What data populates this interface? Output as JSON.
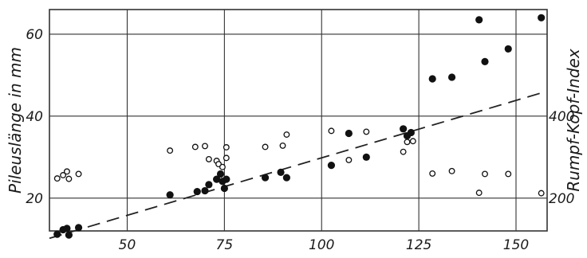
{
  "chart_data": {
    "type": "scatter",
    "title": "",
    "xlabel": "",
    "ylabel": "Pileuslänge in mm",
    "y2label": "Rumpf-Kopf-Index",
    "xlim": [
      30,
      158
    ],
    "ylim": [
      12,
      66
    ],
    "y2lim": [
      120,
      660
    ],
    "grid": true,
    "xticks": [
      50,
      75,
      100,
      125,
      150
    ],
    "yticks": [
      20,
      40,
      60
    ],
    "y2ticks": [
      200,
      400
    ],
    "colors": {
      "filled": "#111111",
      "open": "#111111",
      "grid": "#333333",
      "trend": "#222222"
    },
    "series": [
      {
        "marker": "filled-circle",
        "axis": "left",
        "points": [
          [
            32,
            11.2
          ],
          [
            33.5,
            12.3
          ],
          [
            34.5,
            12.6
          ],
          [
            35,
            11.0
          ],
          [
            37.5,
            12.8
          ],
          [
            61,
            20.8
          ],
          [
            68,
            21.6
          ],
          [
            70,
            21.8
          ],
          [
            71,
            23.3
          ],
          [
            73,
            24.6
          ],
          [
            74,
            25.9
          ],
          [
            74.5,
            24.1
          ],
          [
            75,
            22.4
          ],
          [
            75.5,
            24.6
          ],
          [
            85.5,
            25.0
          ],
          [
            89.5,
            26.3
          ],
          [
            91,
            25.0
          ],
          [
            102.5,
            28.0
          ],
          [
            107,
            35.8
          ],
          [
            111.5,
            30.0
          ],
          [
            121,
            36.9
          ],
          [
            122,
            35.2
          ],
          [
            123,
            36.0
          ],
          [
            128.5,
            49.1
          ],
          [
            133.5,
            49.5
          ],
          [
            140.5,
            63.5
          ],
          [
            142,
            53.3
          ],
          [
            148,
            56.4
          ],
          [
            156.5,
            64.0
          ]
        ]
      },
      {
        "marker": "open-circle",
        "axis": "right",
        "points": [
          [
            32,
            248
          ],
          [
            33.5,
            256
          ],
          [
            34.5,
            265
          ],
          [
            35,
            247
          ],
          [
            37.5,
            259
          ],
          [
            61,
            316
          ],
          [
            67.5,
            325
          ],
          [
            70,
            327
          ],
          [
            71,
            295
          ],
          [
            73,
            291
          ],
          [
            73.5,
            283
          ],
          [
            74.5,
            276
          ],
          [
            75.5,
            298
          ],
          [
            75.5,
            324
          ],
          [
            85.5,
            325
          ],
          [
            90,
            328
          ],
          [
            91,
            355
          ],
          [
            102.5,
            364
          ],
          [
            107,
            293
          ],
          [
            111.5,
            362
          ],
          [
            121,
            313
          ],
          [
            122,
            337
          ],
          [
            123.5,
            339
          ],
          [
            128.5,
            260
          ],
          [
            133.5,
            266
          ],
          [
            140.5,
            213
          ],
          [
            142,
            259
          ],
          [
            148,
            259
          ],
          [
            156.5,
            212
          ]
        ]
      }
    ],
    "trendline": {
      "style": "dashed",
      "axis": "left",
      "from": [
        30,
        10.2
      ],
      "to": [
        157,
        45.8
      ]
    }
  }
}
